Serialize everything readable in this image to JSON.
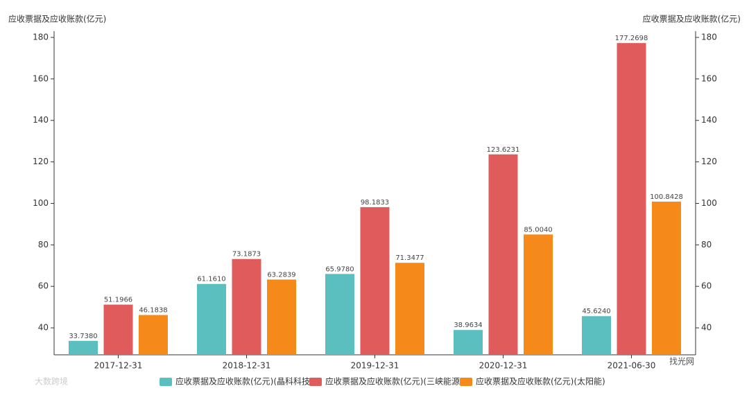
{
  "chart_data": {
    "type": "bar",
    "y_label": "应收票据及应收账款(亿元)",
    "y2_label": "应收票据及应收账款(亿元)",
    "categories": [
      "2017-12-31",
      "2018-12-31",
      "2019-12-31",
      "2020-12-31",
      "2021-06-30"
    ],
    "series": [
      {
        "name": "应收票据及应收账款(亿元)(晶科科技)",
        "color": "#5bbfc0",
        "values": [
          33.738,
          61.161,
          65.978,
          38.9634,
          45.624
        ],
        "value_labels": [
          "33.7380",
          "61.1610",
          "65.9780",
          "38.9634",
          "45.6240"
        ]
      },
      {
        "name": "应收票据及应收账款(亿元)(三峡能源)",
        "color": "#e05c5c",
        "values": [
          51.1966,
          73.1873,
          98.1833,
          123.6231,
          177.2698
        ],
        "value_labels": [
          "51.1966",
          "73.1873",
          "98.1833",
          "123.6231",
          "177.2698"
        ]
      },
      {
        "name": "应收票据及应收账款(亿元)(太阳能)",
        "color": "#f5891a",
        "values": [
          46.1838,
          63.2839,
          71.3477,
          85.004,
          100.8428
        ],
        "value_labels": [
          "46.1838",
          "63.2839",
          "71.3477",
          "85.0040",
          "100.8428"
        ]
      }
    ],
    "ylim": [
      27,
      183
    ],
    "yticks": [
      40,
      60,
      80,
      100,
      120,
      140,
      160,
      180
    ],
    "y2lim": [
      27,
      183
    ],
    "y2ticks": [
      40,
      60,
      80,
      100,
      120,
      140,
      160,
      180
    ],
    "legend": "bottom",
    "watermarks": [
      "大数跨境",
      "找光网"
    ]
  }
}
